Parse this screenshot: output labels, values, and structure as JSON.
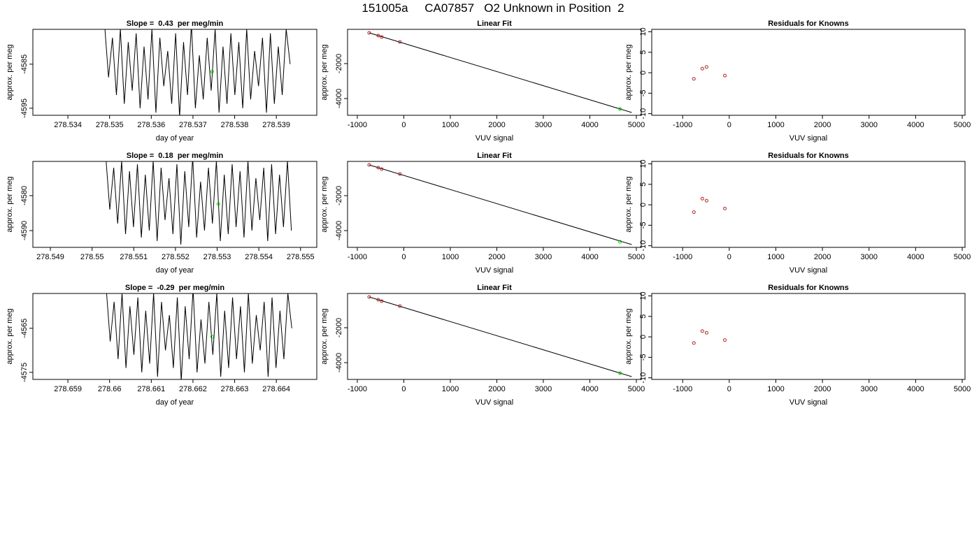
{
  "title": "151005a     CA07857   O2 Unknown in Position  2",
  "chart_data": [
    {
      "type": "line",
      "title": "Slope =  0.43  per meg/min",
      "x_label": "day of year",
      "y_label": "approx. per meg",
      "xlim": [
        278.53316,
        278.53997
      ],
      "ylim": [
        -4596.6,
        -4577.1
      ],
      "xticks": [
        278.534,
        278.535,
        278.536,
        278.537,
        278.538,
        278.539
      ],
      "yticks": [
        -4585,
        -4595
      ],
      "series": [
        {
          "mode": "line",
          "color": "#000000",
          "x": [
            278.53488,
            278.534975,
            278.535069,
            278.535164,
            278.535259,
            278.535353,
            278.535448,
            278.535543,
            278.535638,
            278.535732,
            278.535827,
            278.535922,
            278.536016,
            278.536111,
            278.536206,
            278.5363,
            278.536395,
            278.53649,
            278.536585,
            278.536679,
            278.536774,
            278.536869,
            278.536963,
            278.537058,
            278.537153,
            278.537247,
            278.537342,
            278.537437,
            278.537532,
            278.537626,
            278.537721,
            278.537816,
            278.53791,
            278.538005,
            278.5381,
            278.538194,
            278.538289,
            278.538384,
            278.538479,
            278.538573,
            278.538668,
            278.538763,
            278.538857,
            278.538952,
            278.539047,
            278.539141,
            278.539236,
            278.539331
          ],
          "values": [
            -4576,
            -4588,
            -4579,
            -4592,
            -4577,
            -4594,
            -4580,
            -4591,
            -4578,
            -4595,
            -4581,
            -4593,
            -4577,
            -4596,
            -4579,
            -4590,
            -4582,
            -4594,
            -4578,
            -4597,
            -4580,
            -4592,
            -4576,
            -4595,
            -4583,
            -4593,
            -4579,
            -4591,
            -4577,
            -4596,
            -4581,
            -4594,
            -4578,
            -4592,
            -4580,
            -4595,
            -4577,
            -4593,
            -4582,
            -4590,
            -4579,
            -4596,
            -4578,
            -4594,
            -4581,
            -4592,
            -4577,
            -4585
          ]
        },
        {
          "mode": "points",
          "color": "#00cc00",
          "x": [
            278.53746
          ],
          "values": [
            -4586.7
          ]
        }
      ]
    },
    {
      "type": "scatter",
      "title": "Linear Fit",
      "x_label": "VUV signal",
      "y_label": "approx. per meg",
      "xlim": [
        -1210,
        5105
      ],
      "ylim": [
        -4960,
        -40
      ],
      "xticks": [
        -1000,
        0,
        1000,
        2000,
        3000,
        4000,
        5000
      ],
      "yticks": [
        -2000,
        -4000
      ],
      "series": [
        {
          "mode": "line",
          "color": "#000000",
          "x": [
            -745,
            4900
          ],
          "values": [
            -240,
            -4800
          ]
        },
        {
          "mode": "points",
          "color": "#b22222",
          "x": [
            -745,
            -550,
            -475,
            -85
          ],
          "values": [
            -240,
            -400,
            -480,
            -760
          ]
        },
        {
          "mode": "points",
          "color": "#00cc00",
          "x": [
            4650
          ],
          "values": [
            -4600
          ]
        }
      ]
    },
    {
      "type": "scatter",
      "title": "Residuals for Knowns",
      "x_label": "VUV signal",
      "y_label": "approx. per meg",
      "xlim": [
        -1664,
        5060
      ],
      "ylim": [
        -10.4,
        10.6
      ],
      "xticks": [
        -1000,
        0,
        1000,
        2000,
        3000,
        4000,
        5000
      ],
      "yticks": [
        -10,
        -5,
        0,
        5,
        10
      ],
      "series": [
        {
          "mode": "points",
          "color": "#b22222",
          "x": [
            -759,
            -578,
            -487,
            -95
          ],
          "values": [
            -1.5,
            1.0,
            1.4,
            -0.7
          ]
        }
      ]
    },
    {
      "type": "line",
      "title": "Slope =  0.18  per meg/min",
      "x_label": "day of year",
      "y_label": "approx. per meg",
      "xlim": [
        278.54858,
        278.55539
      ],
      "ylim": [
        -4594.8,
        -4570.2
      ],
      "xticks": [
        278.549,
        278.55,
        278.551,
        278.552,
        278.553,
        278.554,
        278.555
      ],
      "yticks": [
        -4580,
        -4590
      ],
      "series": [
        {
          "mode": "line",
          "color": "#000000",
          "x": [
            278.55033,
            278.550425,
            278.550519,
            278.550614,
            278.550709,
            278.550803,
            278.550898,
            278.550993,
            278.551088,
            278.551182,
            278.551277,
            278.551372,
            278.551466,
            278.551561,
            278.551656,
            278.55175,
            278.551845,
            278.55194,
            278.552035,
            278.552129,
            278.552224,
            278.552319,
            278.552413,
            278.552508,
            278.552603,
            278.552697,
            278.552792,
            278.552887,
            278.552982,
            278.553076,
            278.553171,
            278.553266,
            278.55336,
            278.553455,
            278.55355,
            278.553644,
            278.553739,
            278.553834,
            278.553929,
            278.554023,
            278.554118,
            278.554213,
            278.554307,
            278.554402,
            278.554497,
            278.554591,
            278.554686,
            278.554781
          ],
          "values": [
            -4569,
            -4584,
            -4572,
            -4588,
            -4570,
            -4591,
            -4573,
            -4589,
            -4571,
            -4592,
            -4574,
            -4590,
            -4570,
            -4593,
            -4572,
            -4587,
            -4575,
            -4591,
            -4571,
            -4594,
            -4573,
            -4589,
            -4569,
            -4592,
            -4576,
            -4590,
            -4572,
            -4588,
            -4570,
            -4593,
            -4574,
            -4591,
            -4571,
            -4589,
            -4573,
            -4592,
            -4570,
            -4590,
            -4575,
            -4587,
            -4572,
            -4593,
            -4571,
            -4591,
            -4574,
            -4589,
            -4570,
            -4590
          ]
        },
        {
          "mode": "points",
          "color": "#00cc00",
          "x": [
            278.55303
          ],
          "values": [
            -4582.4
          ]
        }
      ]
    },
    {
      "type": "scatter",
      "title": "Linear Fit",
      "x_label": "VUV signal",
      "y_label": "approx. per meg",
      "xlim": [
        -1210,
        5105
      ],
      "ylim": [
        -4960,
        -40
      ],
      "xticks": [
        -1000,
        0,
        1000,
        2000,
        3000,
        4000,
        5000
      ],
      "yticks": [
        -2000,
        -4000
      ],
      "series": [
        {
          "mode": "line",
          "color": "#000000",
          "x": [
            -745,
            4900
          ],
          "values": [
            -240,
            -4800
          ]
        },
        {
          "mode": "points",
          "color": "#b22222",
          "x": [
            -745,
            -550,
            -475,
            -85
          ],
          "values": [
            -240,
            -400,
            -480,
            -760
          ]
        },
        {
          "mode": "points",
          "color": "#00cc00",
          "x": [
            4650
          ],
          "values": [
            -4640
          ]
        }
      ]
    },
    {
      "type": "scatter",
      "title": "Residuals for Knowns",
      "x_label": "VUV signal",
      "y_label": "approx. per meg",
      "xlim": [
        -1664,
        5060
      ],
      "ylim": [
        -10.4,
        10.6
      ],
      "xticks": [
        -1000,
        0,
        1000,
        2000,
        3000,
        4000,
        5000
      ],
      "yticks": [
        -10,
        -5,
        0,
        5,
        10
      ],
      "series": [
        {
          "mode": "points",
          "color": "#b22222",
          "x": [
            -759,
            -578,
            -487,
            -95
          ],
          "values": [
            -1.8,
            1.5,
            1.0,
            -0.9
          ]
        }
      ]
    },
    {
      "type": "line",
      "title": "Slope =  -0.29  per meg/min",
      "x_label": "day of year",
      "y_label": "approx. per meg",
      "xlim": [
        278.65816,
        278.66497
      ],
      "ylim": [
        -4576.6,
        -4557.1
      ],
      "xticks": [
        278.659,
        278.66,
        278.661,
        278.662,
        278.663,
        278.664
      ],
      "yticks": [
        -4565,
        -4575
      ],
      "series": [
        {
          "mode": "line",
          "color": "#000000",
          "x": [
            278.65992,
            278.660015,
            278.660109,
            278.660204,
            278.660299,
            278.660393,
            278.660488,
            278.660583,
            278.660678,
            278.660772,
            278.660867,
            278.660962,
            278.661056,
            278.661151,
            278.661246,
            278.66134,
            278.661435,
            278.66153,
            278.661625,
            278.661719,
            278.661814,
            278.661909,
            278.662003,
            278.662098,
            278.662193,
            278.662287,
            278.662382,
            278.662477,
            278.662572,
            278.662666,
            278.662761,
            278.662856,
            278.66295,
            278.663045,
            278.66314,
            278.663234,
            278.663329,
            278.663424,
            278.663519,
            278.663613,
            278.663708,
            278.663803,
            278.663897,
            278.663992,
            278.664087,
            278.664181,
            278.664276,
            278.664371
          ],
          "values": [
            -4556,
            -4568,
            -4559,
            -4572,
            -4557,
            -4574,
            -4560,
            -4571,
            -4558,
            -4575,
            -4561,
            -4573,
            -4557,
            -4576,
            -4559,
            -4570,
            -4562,
            -4574,
            -4558,
            -4577,
            -4560,
            -4572,
            -4556,
            -4575,
            -4563,
            -4573,
            -4559,
            -4571,
            -4557,
            -4576,
            -4561,
            -4574,
            -4558,
            -4572,
            -4560,
            -4575,
            -4557,
            -4573,
            -4562,
            -4570,
            -4559,
            -4576,
            -4558,
            -4574,
            -4561,
            -4572,
            -4557,
            -4565
          ]
        },
        {
          "mode": "points",
          "color": "#00cc00",
          "x": [
            278.66246
          ],
          "values": [
            -4566.9
          ]
        }
      ]
    },
    {
      "type": "scatter",
      "title": "Linear Fit",
      "x_label": "VUV signal",
      "y_label": "approx. per meg",
      "xlim": [
        -1210,
        5105
      ],
      "ylim": [
        -4960,
        -40
      ],
      "xticks": [
        -1000,
        0,
        1000,
        2000,
        3000,
        4000,
        5000
      ],
      "yticks": [
        -2000,
        -4000
      ],
      "series": [
        {
          "mode": "line",
          "color": "#000000",
          "x": [
            -745,
            4900
          ],
          "values": [
            -240,
            -4800
          ]
        },
        {
          "mode": "points",
          "color": "#b22222",
          "x": [
            -745,
            -550,
            -475,
            -85
          ],
          "values": [
            -240,
            -400,
            -480,
            -760
          ]
        },
        {
          "mode": "points",
          "color": "#00cc00",
          "x": [
            4650
          ],
          "values": [
            -4600
          ]
        }
      ]
    },
    {
      "type": "scatter",
      "title": "Residuals for Knowns",
      "x_label": "VUV signal",
      "y_label": "approx. per meg",
      "xlim": [
        -1664,
        5060
      ],
      "ylim": [
        -10.4,
        10.6
      ],
      "xticks": [
        -1000,
        0,
        1000,
        2000,
        3000,
        4000,
        5000
      ],
      "yticks": [
        -10,
        -5,
        0,
        5,
        10
      ],
      "series": [
        {
          "mode": "points",
          "color": "#b22222",
          "x": [
            -759,
            -578,
            -487,
            -95
          ],
          "values": [
            -1.5,
            1.4,
            1.0,
            -0.8
          ]
        }
      ]
    }
  ]
}
